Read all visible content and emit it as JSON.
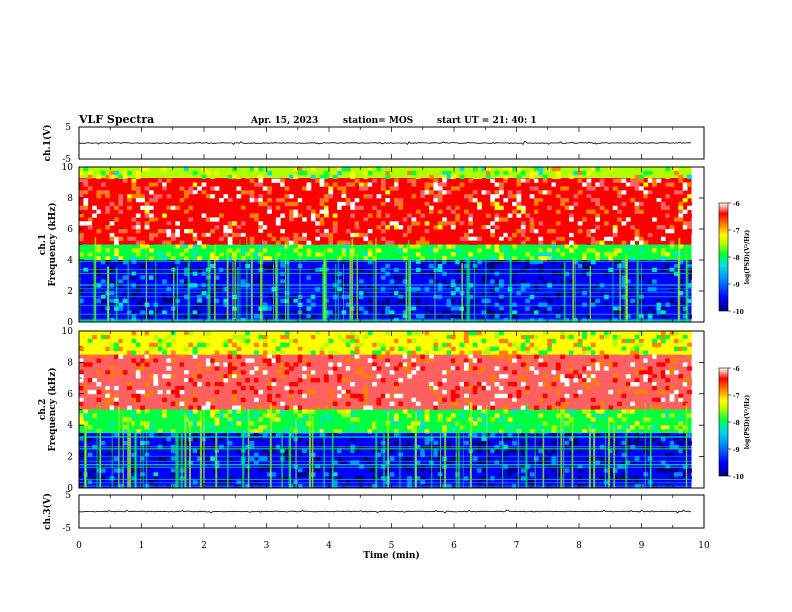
{
  "header": {
    "title": "VLF Spectra",
    "date": "Apr. 15, 2023",
    "station": "station= MOS",
    "start": "start  UT  =   21: 40: 1"
  },
  "colors": {
    "spectrogram_scale": [
      "#00007a",
      "#0000ff",
      "#0090ff",
      "#00e0e0",
      "#00ff40",
      "#b0ff00",
      "#ffff00",
      "#ff8000",
      "#ff0000",
      "#ff6060",
      "#ffffff"
    ]
  },
  "chart_data": [
    {
      "type": "line",
      "name": "ch1-waveform",
      "ylabel": "ch.1(V)",
      "ylim": [
        -5,
        5
      ],
      "yticks": [
        "5",
        "-5"
      ],
      "xlim": [
        0,
        10
      ],
      "level": 0,
      "grid": false
    },
    {
      "type": "heatmap",
      "name": "ch1-spectrogram",
      "ylabel": "ch.1\nFrequency (kHz)",
      "ylim": [
        0,
        10
      ],
      "yticks": [
        "0",
        "2",
        "4",
        "6",
        "8",
        "10"
      ],
      "xlim": [
        0,
        10
      ],
      "data_end_min": 9.8,
      "bands": [
        {
          "from_khz": 0,
          "to_khz": 4,
          "level": -9.5
        },
        {
          "from_khz": 4,
          "to_khz": 5,
          "level": -8.2
        },
        {
          "from_khz": 5,
          "to_khz": 9.3,
          "level": -6.8
        },
        {
          "from_khz": 9.3,
          "to_khz": 10,
          "level": -8.0
        }
      ],
      "colorbar": {
        "label": "log(PSD)(V²/Hz)",
        "range": [
          -10,
          -6
        ],
        "ticks": [
          "-6",
          "-7",
          "-8",
          "-9",
          "-10"
        ]
      }
    },
    {
      "type": "heatmap",
      "name": "ch2-spectrogram",
      "ylabel": "ch.2\nFrequency (kHz)",
      "ylim": [
        0,
        10
      ],
      "yticks": [
        "0",
        "2",
        "4",
        "6",
        "8",
        "10"
      ],
      "xlim": [
        0,
        10
      ],
      "data_end_min": 9.8,
      "bands": [
        {
          "from_khz": 0,
          "to_khz": 3.5,
          "level": -9.6
        },
        {
          "from_khz": 3.5,
          "to_khz": 5,
          "level": -8.2
        },
        {
          "from_khz": 5,
          "to_khz": 8.5,
          "level": -6.7
        },
        {
          "from_khz": 8.5,
          "to_khz": 10,
          "level": -7.8
        }
      ],
      "colorbar": {
        "label": "log(PSD)(V²/Hz)",
        "range": [
          -10,
          -6
        ],
        "ticks": [
          "-6",
          "-7",
          "-8",
          "-9",
          "-10"
        ]
      }
    },
    {
      "type": "line",
      "name": "ch3-waveform",
      "ylabel": "ch.3(V)",
      "ylim": [
        -5,
        5
      ],
      "yticks": [
        "5",
        "-5"
      ],
      "xlim": [
        0,
        10
      ],
      "level": 0,
      "grid": false,
      "xlabel": "Time (min)",
      "xticks": [
        "0",
        "1",
        "2",
        "3",
        "4",
        "5",
        "6",
        "7",
        "8",
        "9",
        "10"
      ]
    }
  ]
}
